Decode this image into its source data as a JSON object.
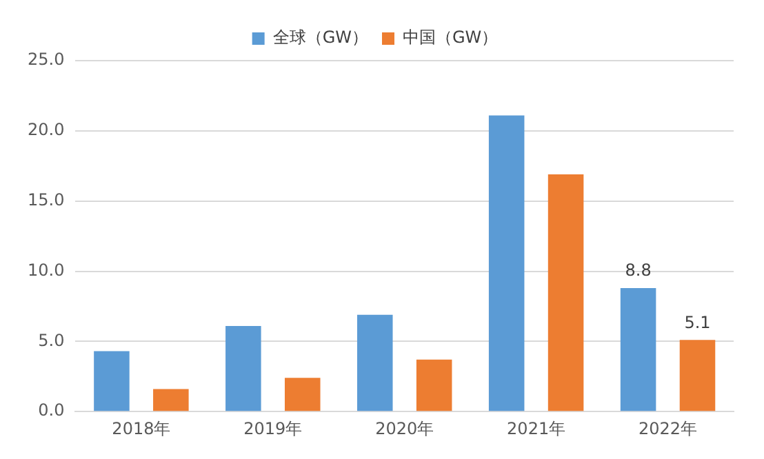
{
  "chart_data": {
    "type": "bar",
    "categories": [
      "2018年",
      "2019年",
      "2020年",
      "2021年",
      "2022年"
    ],
    "series": [
      {
        "name": "全球（GW）",
        "color": "#5b9bd5",
        "values": [
          4.3,
          6.1,
          6.9,
          21.1,
          8.8
        ],
        "value_labels": [
          null,
          null,
          null,
          null,
          "8.8"
        ]
      },
      {
        "name": "中国（GW）",
        "color": "#ed7d31",
        "values": [
          1.6,
          2.4,
          3.7,
          16.9,
          5.1
        ],
        "value_labels": [
          null,
          null,
          null,
          null,
          "5.1"
        ]
      }
    ],
    "ylim": [
      0,
      25
    ],
    "yticks": [
      {
        "value": 0,
        "label": "0.0"
      },
      {
        "value": 5,
        "label": "5.0"
      },
      {
        "value": 10,
        "label": "10.0"
      },
      {
        "value": 15,
        "label": "15.0"
      },
      {
        "value": 20,
        "label": "20.0"
      },
      {
        "value": 25,
        "label": "25.0"
      }
    ],
    "grid": "y",
    "legend": "top"
  }
}
